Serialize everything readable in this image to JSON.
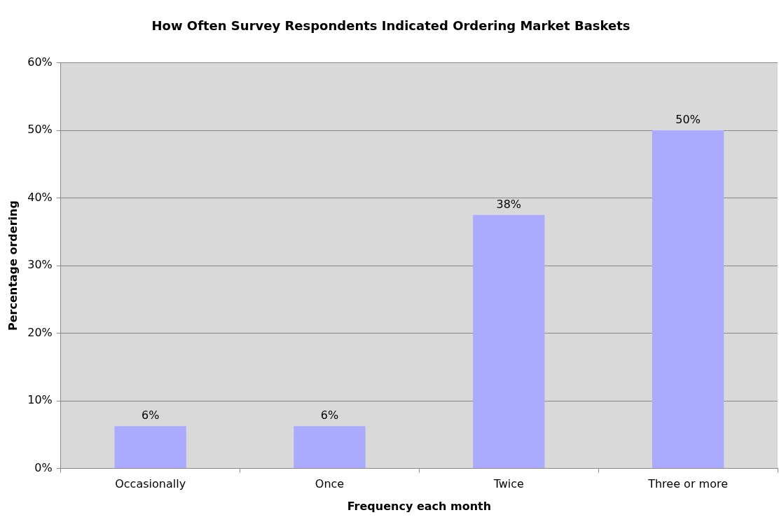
{
  "chart_data": {
    "type": "bar",
    "title": "How Often Survey Respondents Indicated Ordering Market Baskets",
    "xlabel": "Frequency each month",
    "ylabel": "Percentage ordering",
    "categories": [
      "Occasionally",
      "Once",
      "Twice",
      "Three or more"
    ],
    "values": [
      6.25,
      6.25,
      37.5,
      50
    ],
    "color": "#aaaaff",
    "value_labels": [
      "6%",
      "6%",
      "38%",
      "50%"
    ],
    "ylim": [
      0,
      60
    ],
    "yticks": [
      {
        "value": 0,
        "label": "0%"
      },
      {
        "value": 10,
        "label": "10%"
      },
      {
        "value": 20,
        "label": "20%"
      },
      {
        "value": 30,
        "label": "30%"
      },
      {
        "value": 40,
        "label": "40%"
      },
      {
        "value": 50,
        "label": "50%"
      },
      {
        "value": 60,
        "label": "60%"
      }
    ],
    "grid": "y",
    "legend": false
  }
}
